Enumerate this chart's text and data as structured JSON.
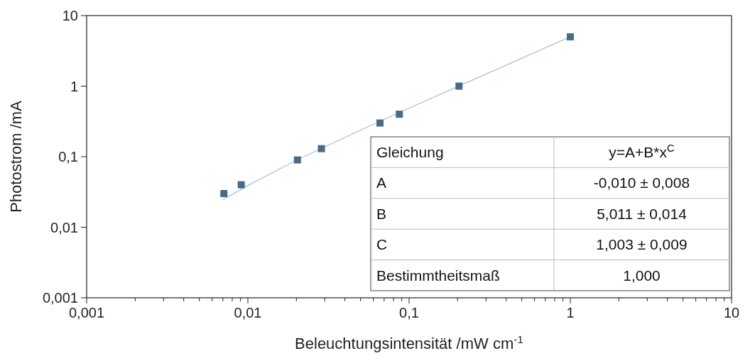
{
  "chart_data": {
    "type": "scatter",
    "xlabel": "Beleuchtungsintensität /mW cm$^{-1}$",
    "ylabel": "Photostrom /mA",
    "log": "xy",
    "marker": "square",
    "xlim": [
      0.001,
      10
    ],
    "ylim": [
      0.001,
      10
    ],
    "xticks": [
      {
        "value": 0.001,
        "label": "0,001"
      },
      {
        "value": 0.002,
        "label": null
      },
      {
        "value": 0.003,
        "label": null
      },
      {
        "value": 0.004,
        "label": null
      },
      {
        "value": 0.005,
        "label": null
      },
      {
        "value": 0.006,
        "label": null
      },
      {
        "value": 0.007,
        "label": null
      },
      {
        "value": 0.008,
        "label": null
      },
      {
        "value": 0.009,
        "label": null
      },
      {
        "value": 0.01,
        "label": "0,01"
      },
      {
        "value": 0.02,
        "label": null
      },
      {
        "value": 0.03,
        "label": null
      },
      {
        "value": 0.04,
        "label": null
      },
      {
        "value": 0.05,
        "label": null
      },
      {
        "value": 0.06,
        "label": null
      },
      {
        "value": 0.07,
        "label": null
      },
      {
        "value": 0.08,
        "label": null
      },
      {
        "value": 0.09,
        "label": null
      },
      {
        "value": 0.1,
        "label": "0,1"
      },
      {
        "value": 0.2,
        "label": null
      },
      {
        "value": 0.3,
        "label": null
      },
      {
        "value": 0.4,
        "label": null
      },
      {
        "value": 0.5,
        "label": null
      },
      {
        "value": 0.6,
        "label": null
      },
      {
        "value": 0.7,
        "label": null
      },
      {
        "value": 0.8,
        "label": null
      },
      {
        "value": 0.9,
        "label": null
      },
      1,
      {
        "value": 2,
        "label": null
      },
      {
        "value": 3,
        "label": null
      },
      {
        "value": 4,
        "label": null
      },
      {
        "value": 5,
        "label": null
      },
      {
        "value": 6,
        "label": null
      },
      {
        "value": 7,
        "label": null
      },
      {
        "value": 8,
        "label": null
      },
      {
        "value": 9,
        "label": null
      },
      10
    ],
    "yticks": [
      {
        "value": 0.001,
        "label": "0,001"
      },
      {
        "value": 0.01,
        "label": "0,01"
      },
      {
        "value": 0.1,
        "label": "0,1"
      },
      1,
      10
    ],
    "series": [
      {
        "type": "line",
        "marker": "none",
        "color": "#a9c1d3",
        "x": [
          0.007,
          0.01,
          0.02,
          0.05,
          0.1,
          0.2,
          0.5,
          1
        ],
        "values": [
          0.0245,
          0.039,
          0.089,
          0.238,
          0.488,
          0.987,
          2.49,
          5.0
        ]
      },
      {
        "color": "#4b6a86",
        "x": [
          0.0071,
          0.0091,
          0.0203,
          0.0286,
          0.066,
          0.087,
          0.204,
          1
        ],
        "values": [
          0.03,
          0.04,
          0.09,
          0.13,
          0.3,
          0.4,
          1,
          5
        ]
      }
    ],
    "annotations": [
      "Gleichung",
      "y=A+B*x$^{C}$",
      "A",
      "-0,010 ± 0,008",
      "B",
      "5,011 ± 0,014",
      "C",
      "1,003 ± 0,009",
      "Bestimmtheitsmaß",
      "1,000"
    ]
  }
}
